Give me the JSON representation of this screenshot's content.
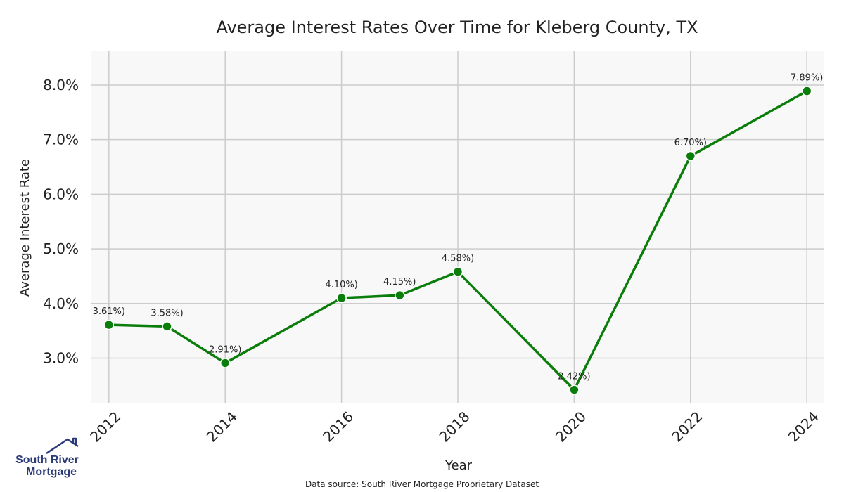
{
  "chart_data": {
    "type": "line",
    "title": "Average Interest Rates Over Time for Kleberg County, TX",
    "xlabel": "Year",
    "ylabel": "Average Interest Rate",
    "x": [
      2012,
      2013,
      2014,
      2016,
      2017,
      2018,
      2020,
      2022,
      2024
    ],
    "series": [
      {
        "values": [
          3.61,
          3.58,
          2.91,
          4.1,
          4.15,
          4.58,
          2.42,
          6.7,
          7.89
        ],
        "labels": [
          "3.61%)",
          "3.58%)",
          "2.91%)",
          "4.10%)",
          "4.15%)",
          "4.58%)",
          "2.42%)",
          "6.70%)",
          "7.89%)"
        ],
        "color": "#0a7d0a"
      }
    ],
    "xticks": [
      2012,
      2014,
      2016,
      2018,
      2020,
      2022,
      2024
    ],
    "xtick_labels": [
      "2012",
      "2014",
      "2016",
      "2018",
      "2020",
      "2022",
      "2024"
    ],
    "yticks": [
      3.0,
      4.0,
      5.0,
      6.0,
      7.0,
      8.0
    ],
    "ytick_labels": [
      "3.0%",
      "4.0%",
      "5.0%",
      "6.0%",
      "7.0%",
      "8.0%"
    ],
    "xlim": [
      2011.7,
      2024.3
    ],
    "ylim": [
      2.17,
      8.63
    ],
    "grid": true,
    "legend": "none",
    "background_color": "#f8f8f8",
    "grid_color": "#cccccc"
  },
  "footer": {
    "source": "Data source: South River Mortgage Proprietary Dataset"
  },
  "logo": {
    "line1": "South River",
    "line2": "Mortgage",
    "color": "#2b3a78"
  }
}
